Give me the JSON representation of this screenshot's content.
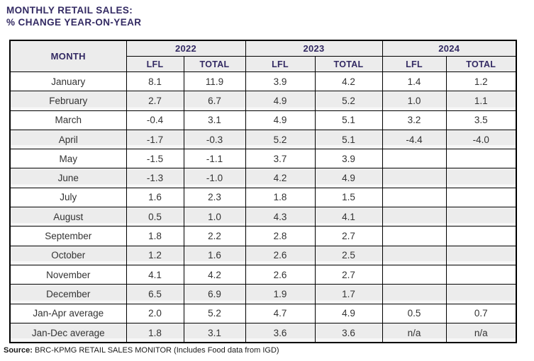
{
  "title": {
    "line1": "MONTHLY RETAIL SALES:",
    "line2": "% CHANGE YEAR-ON-YEAR"
  },
  "table": {
    "month_header": "MONTH",
    "year_groups": [
      {
        "year": "2022",
        "subcolumns": [
          "LFL",
          "TOTAL"
        ]
      },
      {
        "year": "2023",
        "subcolumns": [
          "LFL",
          "TOTAL"
        ]
      },
      {
        "year": "2024",
        "subcolumns": [
          "LFL",
          "TOTAL"
        ]
      }
    ],
    "rows": [
      {
        "month": "January",
        "values": [
          "8.1",
          "11.9",
          "3.9",
          "4.2",
          "1.4",
          "1.2"
        ]
      },
      {
        "month": "February",
        "values": [
          "2.7",
          "6.7",
          "4.9",
          "5.2",
          "1.0",
          "1.1"
        ]
      },
      {
        "month": "March",
        "values": [
          "-0.4",
          "3.1",
          "4.9",
          "5.1",
          "3.2",
          "3.5"
        ]
      },
      {
        "month": "April",
        "values": [
          "-1.7",
          "-0.3",
          "5.2",
          "5.1",
          "-4.4",
          "-4.0"
        ]
      },
      {
        "month": "May",
        "values": [
          "-1.5",
          "-1.1",
          "3.7",
          "3.9",
          "",
          ""
        ]
      },
      {
        "month": "June",
        "values": [
          "-1.3",
          "-1.0",
          "4.2",
          "4.9",
          "",
          ""
        ]
      },
      {
        "month": "July",
        "values": [
          "1.6",
          "2.3",
          "1.8",
          "1.5",
          "",
          ""
        ]
      },
      {
        "month": "August",
        "values": [
          "0.5",
          "1.0",
          "4.3",
          "4.1",
          "",
          ""
        ]
      },
      {
        "month": "September",
        "values": [
          "1.8",
          "2.2",
          "2.8",
          "2.7",
          "",
          ""
        ]
      },
      {
        "month": "October",
        "values": [
          "1.2",
          "1.6",
          "2.6",
          "2.5",
          "",
          ""
        ]
      },
      {
        "month": "November",
        "values": [
          "4.1",
          "4.2",
          "2.6",
          "2.7",
          "",
          ""
        ]
      },
      {
        "month": "December",
        "values": [
          "6.5",
          "6.9",
          "1.9",
          "1.7",
          "",
          ""
        ]
      },
      {
        "month": "Jan-Apr average",
        "values": [
          "2.0",
          "5.2",
          "4.7",
          "4.9",
          "0.5",
          "0.7"
        ]
      },
      {
        "month": "Jan-Dec average",
        "values": [
          "1.8",
          "3.1",
          "3.6",
          "3.6",
          "n/a",
          "n/a"
        ]
      }
    ]
  },
  "source": {
    "label": "Source:",
    "text": "BRC-KPMG RETAIL SALES MONITOR (Includes Food data from IGD)"
  },
  "colors": {
    "accent_navy": "#332a63",
    "row_alt_gray": "#ececec",
    "border_black": "#000000"
  }
}
